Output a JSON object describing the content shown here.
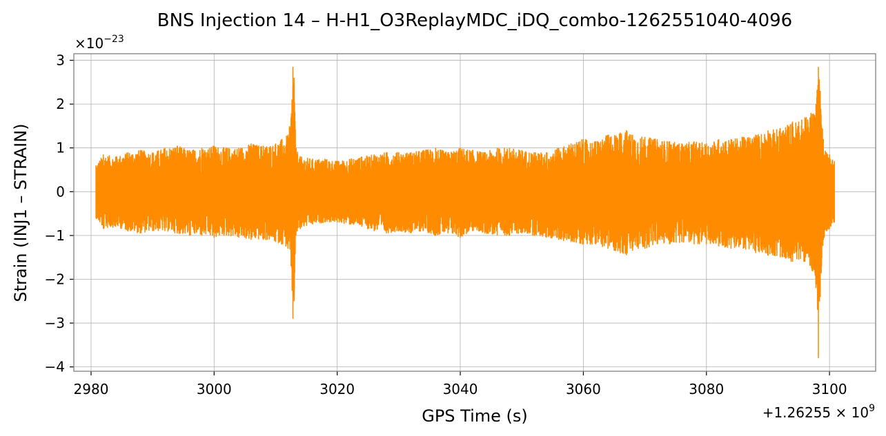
{
  "chart_data": {
    "type": "line",
    "title": "BNS Injection 14 – H-H1_O3ReplayMDC_iDQ_combo-1262551040-4096",
    "xlabel": "GPS Time (s)",
    "ylabel": "Strain (INJ1 – STRAIN)",
    "x_offset_text": "+1.26255",
    "x_offset_exp": "9",
    "y_scale_text": "×10",
    "y_scale_exp": "−23",
    "xlim": [
      2977.2,
      3107.5
    ],
    "ylim": [
      -4.1,
      3.15
    ],
    "xticks": [
      2980,
      3000,
      3020,
      3040,
      3060,
      3080,
      3100
    ],
    "xtick_labels": [
      "2980",
      "3000",
      "3020",
      "3040",
      "3060",
      "3080",
      "3100"
    ],
    "yticks": [
      -4,
      -3,
      -2,
      -1,
      0,
      1,
      2,
      3
    ],
    "ytick_labels": [
      "−4",
      "−3",
      "−2",
      "−1",
      "0",
      "1",
      "2",
      "3"
    ],
    "grid": true,
    "series": [
      {
        "color": "#ff8c00",
        "x": [
          2980.8,
          2982,
          2984,
          2986,
          2988,
          2990,
          2992,
          2994,
          2996,
          2998,
          3000,
          3002,
          3004,
          3006,
          3008,
          3010,
          3011,
          3012,
          3012.5,
          3012.8,
          3013,
          3013.3,
          3014,
          3016,
          3018,
          3020,
          3022,
          3024,
          3026,
          3028,
          3030,
          3032,
          3034,
          3036,
          3038,
          3040,
          3042,
          3044,
          3046,
          3048,
          3050,
          3052,
          3054,
          3056,
          3058,
          3060,
          3062,
          3064,
          3066,
          3067,
          3068,
          3070,
          3072,
          3074,
          3076,
          3078,
          3080,
          3082,
          3084,
          3086,
          3088,
          3090,
          3092,
          3094,
          3095,
          3096,
          3097,
          3097.8,
          3098.2,
          3098.5,
          3099,
          3099.5,
          3100,
          3100.8
        ],
        "upper": [
          0.6,
          0.85,
          0.8,
          0.9,
          0.95,
          0.9,
          1.0,
          1.05,
          0.95,
          1.0,
          1.05,
          1.0,
          1.0,
          1.1,
          1.05,
          1.1,
          1.2,
          1.3,
          1.7,
          2.85,
          2.6,
          1.0,
          0.8,
          0.75,
          0.75,
          0.7,
          0.75,
          0.8,
          0.85,
          0.9,
          0.9,
          0.9,
          0.95,
          1.0,
          0.9,
          1.0,
          0.95,
          0.9,
          1.0,
          1.0,
          0.95,
          0.9,
          0.9,
          1.0,
          1.1,
          1.2,
          1.15,
          1.3,
          1.35,
          1.4,
          1.3,
          1.25,
          1.2,
          1.15,
          1.1,
          1.15,
          1.1,
          1.2,
          1.2,
          1.25,
          1.3,
          1.4,
          1.45,
          1.6,
          1.6,
          1.7,
          1.8,
          2.0,
          2.85,
          2.3,
          1.2,
          0.9,
          0.85,
          0.7
        ],
        "lower": [
          -0.6,
          -0.85,
          -0.8,
          -0.9,
          -0.95,
          -0.9,
          -0.9,
          -0.95,
          -1.0,
          -1.0,
          -1.05,
          -1.0,
          -1.05,
          -1.1,
          -1.1,
          -1.15,
          -1.2,
          -1.3,
          -1.7,
          -2.9,
          -2.5,
          -1.0,
          -0.85,
          -0.75,
          -0.7,
          -0.7,
          -0.75,
          -0.8,
          -0.9,
          -0.95,
          -0.9,
          -0.95,
          -0.9,
          -1.0,
          -0.95,
          -1.05,
          -0.9,
          -0.95,
          -1.0,
          -1.0,
          -0.95,
          -1.0,
          -1.05,
          -1.1,
          -1.15,
          -1.2,
          -1.2,
          -1.3,
          -1.4,
          -1.45,
          -1.35,
          -1.3,
          -1.2,
          -1.2,
          -1.15,
          -1.2,
          -1.2,
          -1.25,
          -1.3,
          -1.3,
          -1.4,
          -1.45,
          -1.5,
          -1.6,
          -1.55,
          -1.6,
          -1.7,
          -2.2,
          -3.8,
          -2.4,
          -1.1,
          -0.9,
          -0.85,
          -0.7
        ]
      }
    ]
  }
}
